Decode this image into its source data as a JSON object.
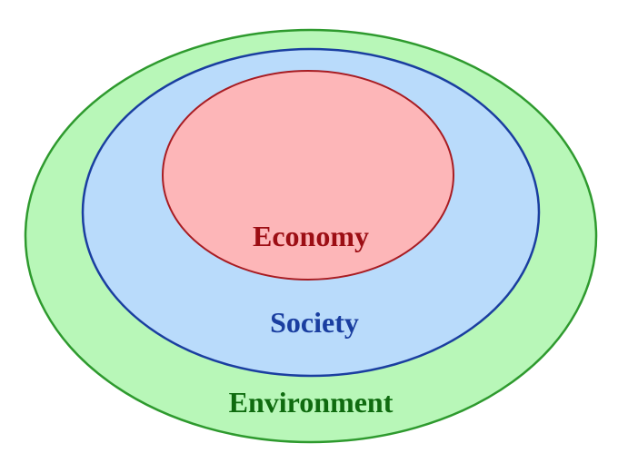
{
  "diagram": {
    "rings": {
      "outer": {
        "label": "Environment",
        "fill": "#b8f7b8",
        "stroke": "#2e9a2e",
        "text_color": "#0f6b0f"
      },
      "middle": {
        "label": "Society",
        "fill": "#b9dbfb",
        "stroke": "#1a3ea0",
        "text_color": "#1a3ea0"
      },
      "inner": {
        "label": "Economy",
        "fill": "#fdb6b8",
        "stroke": "#a81c22",
        "text_color": "#9c0e14"
      }
    }
  }
}
